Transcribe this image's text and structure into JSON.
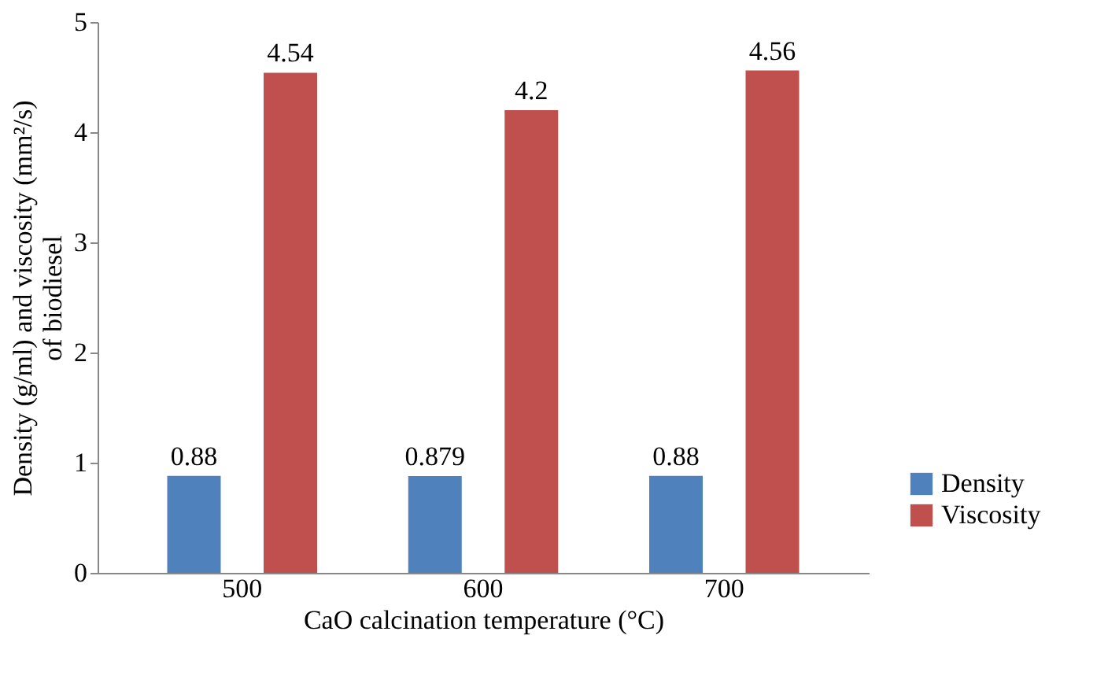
{
  "chart_data": {
    "type": "bar",
    "xlabel": "CaO calcination temperature (°C)",
    "ylabel": "Density (g/ml) and viscosity (mm²/s) of biodiesel",
    "categories": [
      "500",
      "600",
      "700"
    ],
    "series": [
      {
        "name": "Density",
        "color": "#4f81bd",
        "values": [
          0.88,
          0.879,
          0.88
        ]
      },
      {
        "name": "Viscosity",
        "color": "#c0504d",
        "values": [
          4.54,
          4.2,
          4.56
        ]
      }
    ],
    "ylim": [
      0,
      5
    ],
    "yticks": [
      0,
      1,
      2,
      3,
      4,
      5
    ],
    "data_labels": true,
    "grid": false,
    "legend": "bottom right"
  }
}
